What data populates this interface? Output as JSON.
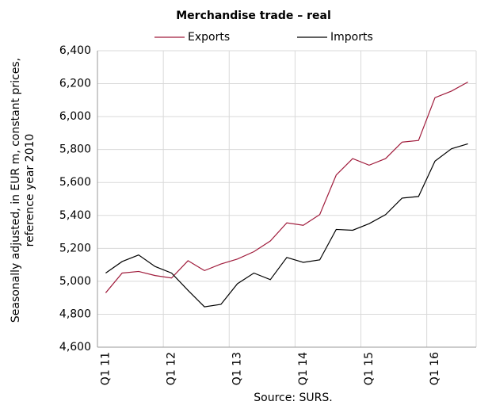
{
  "chart_data": {
    "type": "line",
    "title": "Merchandise trade – real",
    "ylabel": [
      "Seasonally adjusted, in EUR m, constant prices,",
      "reference year 2010"
    ],
    "source": "Source: SURS.",
    "categories": [
      "Q1 11",
      null,
      null,
      null,
      "Q1 12",
      null,
      null,
      null,
      "Q1 13",
      null,
      null,
      null,
      "Q1 14",
      null,
      null,
      null,
      "Q1 15",
      null,
      null,
      null,
      "Q1 16",
      null,
      null
    ],
    "series": [
      {
        "name": "Exports",
        "color": "#a01c3c",
        "values": [
          4930,
          5050,
          5060,
          5035,
          5020,
          5125,
          5065,
          5105,
          5135,
          5180,
          5245,
          5355,
          5340,
          5405,
          5645,
          5745,
          5705,
          5745,
          5845,
          5855,
          6115,
          6155,
          6210
        ]
      },
      {
        "name": "Imports",
        "color": "#000000",
        "values": [
          5050,
          5120,
          5160,
          5090,
          5050,
          4945,
          4845,
          4860,
          4985,
          5050,
          5010,
          5145,
          5115,
          5130,
          5315,
          5310,
          5350,
          5405,
          5505,
          5515,
          5730,
          5805,
          5835
        ]
      }
    ],
    "ylim": [
      4600,
      6400
    ],
    "yticks": [
      {
        "value": 4600,
        "label": "4,600"
      },
      {
        "value": 4800,
        "label": "4,800"
      },
      {
        "value": 5000,
        "label": "5,000"
      },
      {
        "value": 5200,
        "label": "5,200"
      },
      {
        "value": 5400,
        "label": "5,400"
      },
      {
        "value": 5600,
        "label": "5,600"
      },
      {
        "value": 5800,
        "label": "5,800"
      },
      {
        "value": 6000,
        "label": "6,000"
      },
      {
        "value": 6200,
        "label": "6,200"
      },
      {
        "value": 6400,
        "label": "6,400"
      }
    ],
    "grid": true
  }
}
